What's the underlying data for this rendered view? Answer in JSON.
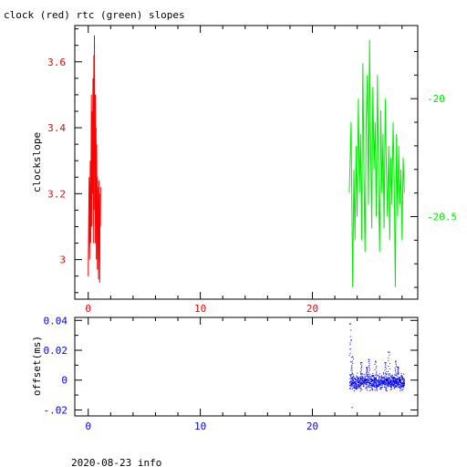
{
  "title": "clock (red) rtc (green) slopes",
  "footer": "2020-08-23 info",
  "colors": {
    "clock": "#ff0000",
    "rtc": "#00ee00",
    "offset": "#0000ff",
    "axis": "#000000"
  },
  "chart_data": [
    {
      "type": "line",
      "title": "clock (red) rtc (green) slopes",
      "xlabel": "",
      "ylabel": "clockslope",
      "xlim": [
        -1.2,
        29.4
      ],
      "ylim": [
        2.88,
        3.71
      ],
      "y2lim": [
        -20.85,
        -19.69
      ],
      "xticks": [
        0,
        10,
        20
      ],
      "yticks": [
        3,
        3.2,
        3.4,
        3.6
      ],
      "y2ticks": [
        -20,
        -20.5
      ],
      "grid": false,
      "series": [
        {
          "axis": "left",
          "color": "#ff0000",
          "x": [
            0.0,
            0.08,
            0.12,
            0.18,
            0.22,
            0.28,
            0.3,
            0.35,
            0.38,
            0.42,
            0.45,
            0.5,
            0.52,
            0.55,
            0.58,
            0.6,
            0.62,
            0.65,
            0.68,
            0.7,
            0.72,
            0.75,
            0.78,
            0.8,
            0.82,
            0.85,
            0.88,
            0.9,
            0.92,
            0.95,
            0.98,
            1.0,
            1.02,
            1.05,
            1.08,
            1.1
          ],
          "y": [
            2.95,
            3.25,
            3.0,
            3.3,
            3.05,
            3.5,
            3.1,
            3.45,
            3.2,
            3.55,
            3.05,
            3.62,
            3.15,
            3.68,
            3.3,
            3.45,
            3.05,
            3.5,
            3.2,
            3.4,
            3.0,
            3.35,
            3.1,
            3.25,
            2.97,
            3.22,
            3.05,
            3.18,
            2.94,
            3.24,
            3.0,
            3.15,
            2.93,
            3.2,
            3.1,
            3.22
          ]
        },
        {
          "axis": "right",
          "color": "#00ee00",
          "x": [
            23.3,
            23.45,
            23.6,
            23.7,
            23.8,
            23.9,
            24.0,
            24.1,
            24.2,
            24.3,
            24.4,
            24.5,
            24.6,
            24.7,
            24.8,
            24.9,
            25.0,
            25.1,
            25.2,
            25.3,
            25.4,
            25.5,
            25.6,
            25.7,
            25.8,
            25.9,
            26.0,
            26.1,
            26.2,
            26.3,
            26.4,
            26.5,
            26.6,
            26.7,
            26.8,
            26.9,
            27.0,
            27.1,
            27.2,
            27.3,
            27.4,
            27.5,
            27.6,
            27.7,
            27.8,
            27.9,
            28.0,
            28.1,
            28.2
          ],
          "y": [
            -20.4,
            -20.1,
            -20.8,
            -20.3,
            -20.6,
            -20.2,
            -20.5,
            -20.0,
            -20.4,
            -20.15,
            -20.6,
            -19.85,
            -20.3,
            -20.65,
            -20.1,
            -19.9,
            -20.45,
            -19.75,
            -20.2,
            -20.55,
            -19.95,
            -20.3,
            -20.1,
            -20.5,
            -19.9,
            -20.35,
            -20.65,
            -20.05,
            -20.4,
            -20.15,
            -20.55,
            -20.0,
            -20.3,
            -20.5,
            -20.2,
            -20.6,
            -20.25,
            -20.45,
            -20.1,
            -20.35,
            -20.8,
            -20.15,
            -20.5,
            -20.2,
            -20.45,
            -20.3,
            -20.6,
            -20.25,
            -20.4
          ]
        }
      ]
    },
    {
      "type": "scatter",
      "xlabel": "",
      "ylabel": "offset(ms)",
      "xlim": [
        -1.2,
        29.4
      ],
      "ylim": [
        -0.024,
        0.042
      ],
      "xticks": [
        0,
        10,
        20
      ],
      "yticks": [
        0.04,
        0.02,
        0,
        -0.02
      ],
      "grid": false,
      "series": [
        {
          "color": "#0000ff",
          "x_range": [
            23.3,
            28.2
          ],
          "y_band": [
            -0.006,
            0.004
          ],
          "spikes": [
            {
              "x": 23.35,
              "y": 0.038
            },
            {
              "x": 23.4,
              "y": 0.027
            },
            {
              "x": 23.5,
              "y": -0.018
            },
            {
              "x": 23.55,
              "y": 0.016
            },
            {
              "x": 24.3,
              "y": 0.012
            },
            {
              "x": 25.0,
              "y": 0.014
            },
            {
              "x": 25.6,
              "y": 0.013
            },
            {
              "x": 26.5,
              "y": 0.012
            },
            {
              "x": 26.8,
              "y": 0.019
            },
            {
              "x": 27.4,
              "y": 0.013
            },
            {
              "x": 27.6,
              "y": 0.009
            },
            {
              "x": 24.8,
              "y": 0.009
            }
          ]
        }
      ]
    }
  ]
}
